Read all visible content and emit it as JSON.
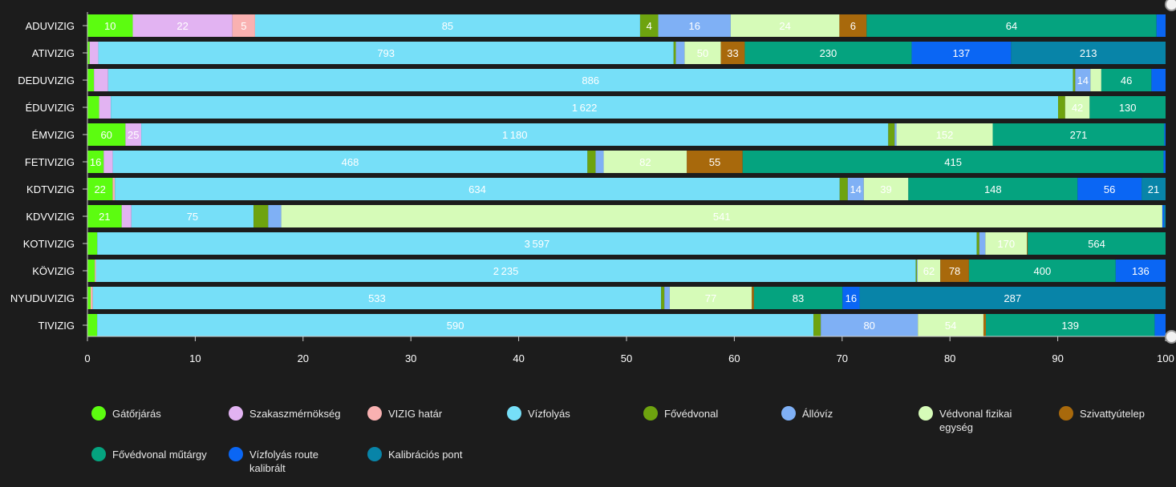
{
  "chart_data": {
    "type": "bar",
    "orientation": "horizontal",
    "stacked": "percent",
    "xlim": [
      0,
      100
    ],
    "x_ticks": [
      "0",
      "10",
      "20",
      "30",
      "40",
      "50",
      "60",
      "70",
      "80",
      "90",
      "100"
    ],
    "grid": false,
    "legend_position": "bottom",
    "categories": [
      "ADUVIZIG",
      "ATIVIZIG",
      "DEDUVIZIG",
      "ÉDUVIZIG",
      "ÉMVIZIG",
      "FETIVIZIG",
      "KDTVIZIG",
      "KDVVIZIG",
      "KOTIVIZIG",
      "KÖVIZIG",
      "NYUDUVIZIG",
      "TIVIZIG"
    ],
    "series": [
      {
        "name": "Gátőrjárás",
        "color": "#5cfc10",
        "values": [
          10,
          3,
          6,
          20,
          60,
          16,
          22,
          21,
          40,
          20,
          3,
          8
        ]
      },
      {
        "name": "Szakaszmérnökség",
        "color": "#e2b3f2",
        "values": [
          22,
          12,
          13,
          20,
          25,
          9,
          0,
          6,
          0,
          0,
          0,
          0
        ]
      },
      {
        "name": "VIZIG határ",
        "color": "#f9b1b1",
        "values": [
          5,
          0,
          0,
          0,
          0,
          0,
          2,
          0,
          0,
          3,
          2,
          0
        ]
      },
      {
        "name": "Vízfolyás",
        "color": "#76dff8",
        "values": [
          85,
          793,
          886,
          1622,
          1180,
          468,
          634,
          75,
          3597,
          2235,
          533,
          590
        ]
      },
      {
        "name": "Fővédvonal",
        "color": "#6ea30f",
        "values": [
          4,
          3,
          2,
          12,
          10,
          8,
          7,
          9,
          10,
          3,
          3,
          6
        ]
      },
      {
        "name": "Állóvíz",
        "color": "#7fb0f5",
        "values": [
          16,
          12,
          14,
          0,
          3,
          8,
          14,
          8,
          25,
          2,
          5,
          80
        ]
      },
      {
        "name": "Védvonal fizikai egység",
        "color": "#d6fbb8",
        "values": [
          24,
          50,
          10,
          42,
          152,
          82,
          39,
          541,
          170,
          62,
          77,
          54
        ]
      },
      {
        "name": "Szivattyútelep",
        "color": "#a8690c",
        "values": [
          6,
          33,
          0,
          0,
          0,
          55,
          0,
          0,
          3,
          78,
          2,
          2
        ]
      },
      {
        "name": "Fővédvonal műtárgy",
        "color": "#05a37f",
        "values": [
          64,
          230,
          46,
          130,
          271,
          415,
          148,
          0,
          564,
          400,
          83,
          139
        ]
      },
      {
        "name": "Vízfolyás route kalibrált",
        "color": "#0a66f4",
        "values": [
          2,
          137,
          13,
          0,
          2,
          2,
          56,
          1,
          0,
          136,
          16,
          9
        ]
      },
      {
        "name": "Kalibrációs pont",
        "color": "#0884a8",
        "values": [
          0,
          213,
          0,
          0,
          0,
          0,
          21,
          1,
          0,
          0,
          287,
          0
        ]
      }
    ],
    "label_threshold_pct": 1.4,
    "colors": {
      "background": "#1c1c1c",
      "axis": "#cccccc",
      "text": "#ffffff"
    }
  }
}
